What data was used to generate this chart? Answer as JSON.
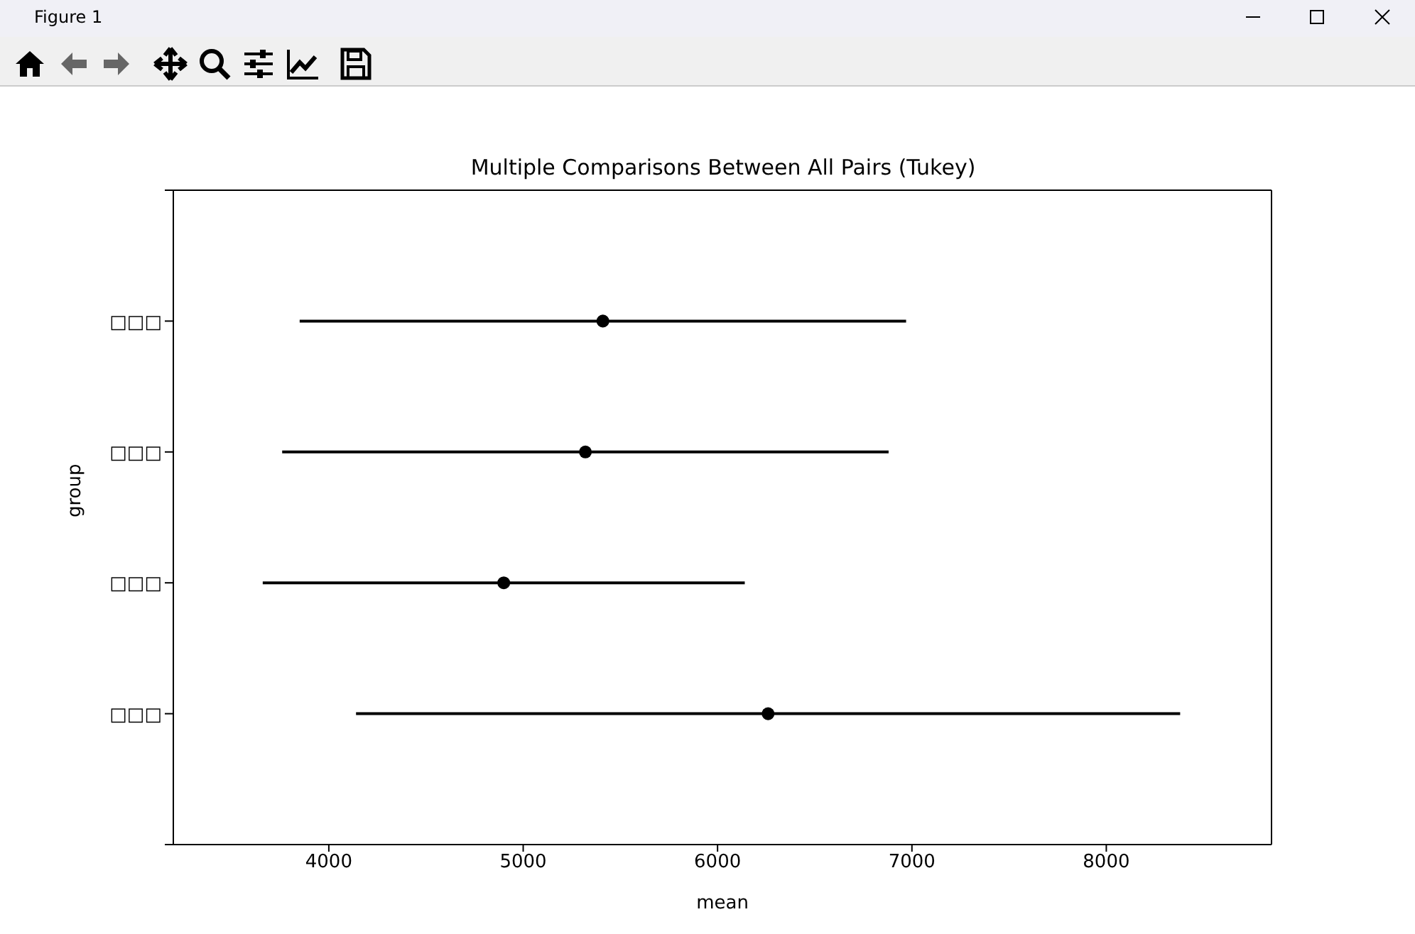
{
  "chart_data": {
    "type": "scatter",
    "orientation": "horizontal",
    "title": "Multiple Comparisons Between All Pairs (Tukey)",
    "xlabel": "mean",
    "ylabel": "group",
    "categories": [
      "□□□",
      "□□□",
      "□□□",
      "□□□"
    ],
    "series": [
      {
        "color": "#000000",
        "values": [
          5410,
          5320,
          4900,
          6260
        ],
        "errors": [
          1560,
          1560,
          1240,
          2120
        ]
      }
    ],
    "xlim": [
      3200,
      8850
    ],
    "xticks": [
      4000,
      5000,
      6000,
      7000,
      8000
    ],
    "marker": "circle",
    "annotations": [
      "Figure 1"
    ]
  }
}
